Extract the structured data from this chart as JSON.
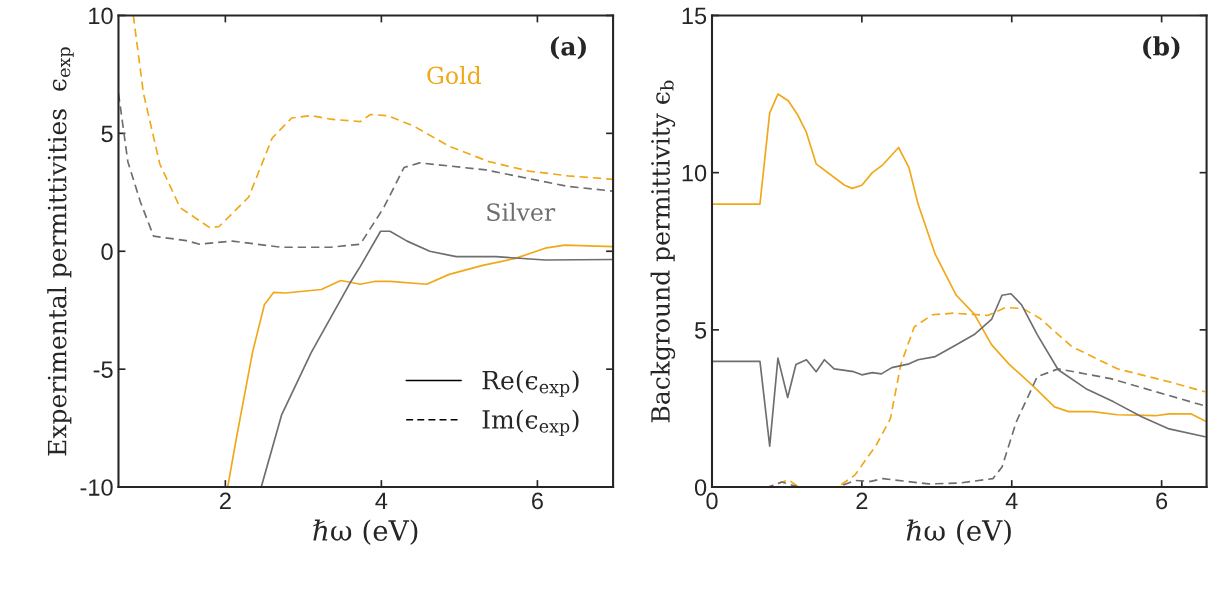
{
  "chart_data": [
    {
      "type": "line",
      "xlabel": "ℏω (eV)",
      "ylabel": "Experimental permittivities  ϵ$_{exp}$",
      "xlim": [
        0.63,
        6.97
      ],
      "ylim": [
        -10,
        10
      ],
      "xticks": [
        2,
        4,
        6
      ],
      "yticks": [
        -10,
        -5,
        0,
        5,
        10
      ],
      "grid": false,
      "annotations": [
        "(a)",
        "Re(ϵ$_{exp}$)",
        "Im(ϵ$_{exp}$)"
      ],
      "series": [
        {
          "color": "#f0a818",
          "line_style": "solid",
          "x": [
            2.03,
            2.14,
            2.35,
            2.5,
            2.62,
            2.77,
            3.23,
            3.48,
            3.73,
            3.91,
            4.11,
            4.58,
            4.87,
            5.3,
            5.72,
            6.1,
            6.35,
            6.97
          ],
          "values": [
            -10,
            -7.95,
            -4.26,
            -2.27,
            -1.74,
            -1.77,
            -1.62,
            -1.24,
            -1.4,
            -1.28,
            -1.28,
            -1.4,
            -0.98,
            -0.6,
            -0.3,
            0.13,
            0.26,
            0.2
          ]
        },
        {
          "name": "Gold",
          "color": "#f0a818",
          "line_style": "dashed",
          "x": [
            0.82,
            0.95,
            1.16,
            1.42,
            1.8,
            1.92,
            2.3,
            2.6,
            2.85,
            3.1,
            3.35,
            3.73,
            3.86,
            4.08,
            4.42,
            4.87,
            5.38,
            5.89,
            6.39,
            6.97
          ],
          "values": [
            10,
            6.7,
            3.7,
            1.85,
            1.0,
            1.05,
            2.3,
            4.8,
            5.65,
            5.75,
            5.6,
            5.5,
            5.8,
            5.75,
            5.3,
            4.45,
            3.8,
            3.4,
            3.2,
            3.05
          ]
        },
        {
          "name": "Silver",
          "color": "#6e6e6e",
          "line_style": "solid",
          "x": [
            2.46,
            2.72,
            3.1,
            3.61,
            3.73,
            3.99,
            4.11,
            4.33,
            4.62,
            4.96,
            5.47,
            6.1,
            6.97
          ],
          "values": [
            -10,
            -6.95,
            -4.3,
            -1.28,
            -0.64,
            0.85,
            0.85,
            0.43,
            0,
            -0.23,
            -0.23,
            -0.37,
            -0.35
          ]
        },
        {
          "color": "#6e6e6e",
          "line_style": "dashed",
          "x": [
            0.63,
            0.75,
            0.91,
            1.08,
            1.5,
            1.67,
            2.09,
            2.72,
            3.35,
            3.73,
            4.03,
            4.29,
            4.49,
            5.34,
            6.39,
            6.97
          ],
          "values": [
            6.7,
            3.8,
            2.1,
            0.64,
            0.45,
            0.3,
            0.43,
            0.17,
            0.17,
            0.3,
            1.85,
            3.55,
            3.75,
            3.45,
            2.75,
            2.55
          ]
        }
      ]
    },
    {
      "type": "line",
      "xlabel": "ℏω (eV)",
      "ylabel": "Background permittivity ϵ$_{b}$",
      "xlim": [
        0,
        6.6
      ],
      "ylim": [
        0,
        15
      ],
      "xticks": [
        0,
        2,
        4,
        6
      ],
      "yticks": [
        0,
        5,
        10,
        15
      ],
      "grid": false,
      "annotations": [
        "(b)"
      ],
      "series": [
        {
          "color": "#f0a818",
          "line_style": "solid",
          "x": [
            0,
            0.64,
            0.77,
            0.88,
            1.02,
            1.14,
            1.26,
            1.39,
            1.77,
            1.87,
            2.0,
            2.14,
            2.28,
            2.49,
            2.63,
            2.75,
            2.98,
            3.26,
            3.5,
            3.73,
            3.96,
            4.29,
            4.57,
            4.76,
            5.08,
            5.41,
            5.92,
            6.1,
            6.39,
            6.58
          ],
          "values": [
            9.0,
            9.0,
            11.9,
            12.5,
            12.28,
            11.85,
            11.28,
            10.28,
            9.6,
            9.5,
            9.6,
            10.0,
            10.25,
            10.8,
            10.15,
            9.0,
            7.4,
            6.1,
            5.5,
            4.53,
            3.92,
            3.2,
            2.55,
            2.4,
            2.4,
            2.3,
            2.27,
            2.33,
            2.33,
            2.1
          ]
        },
        {
          "color": "#f0a818",
          "line_style": "dashed",
          "x": [
            0,
            0.75,
            1.02,
            1.16,
            1.68,
            1.91,
            2.19,
            2.38,
            2.52,
            2.7,
            2.94,
            3.22,
            3.68,
            3.92,
            4.15,
            4.38,
            4.8,
            5.41,
            6.1,
            6.58
          ],
          "values": [
            0,
            0,
            0.23,
            0,
            0,
            0.39,
            1.33,
            2.17,
            3.9,
            5.1,
            5.48,
            5.53,
            5.46,
            5.71,
            5.68,
            5.36,
            4.47,
            3.76,
            3.35,
            3.03
          ]
        },
        {
          "color": "#6e6e6e",
          "line_style": "solid",
          "x": [
            0,
            0.64,
            0.77,
            0.88,
            1.01,
            1.12,
            1.26,
            1.39,
            1.5,
            1.63,
            1.89,
            2.0,
            2.14,
            2.26,
            2.4,
            2.63,
            2.75,
            2.98,
            3.22,
            3.5,
            3.73,
            3.87,
            3.99,
            4.13,
            4.34,
            4.62,
            4.99,
            5.36,
            5.74,
            6.1,
            6.58
          ],
          "values": [
            4.0,
            4.0,
            1.3,
            4.1,
            2.85,
            3.9,
            4.05,
            3.67,
            4.05,
            3.76,
            3.67,
            3.57,
            3.64,
            3.6,
            3.8,
            3.92,
            4.05,
            4.15,
            4.47,
            4.85,
            5.33,
            6.1,
            6.15,
            5.8,
            4.85,
            3.73,
            3.13,
            2.71,
            2.23,
            1.85,
            1.6
          ]
        },
        {
          "color": "#6e6e6e",
          "line_style": "dashed",
          "x": [
            0,
            0.75,
            0.93,
            1.16,
            1.68,
            1.91,
            2.12,
            2.28,
            2.89,
            3.31,
            3.75,
            3.87,
            4.06,
            4.34,
            4.62,
            5.32,
            6.58
          ],
          "values": [
            0,
            0,
            0.16,
            0,
            0,
            0.21,
            0.18,
            0.27,
            0.1,
            0.13,
            0.27,
            0.64,
            2.07,
            3.51,
            3.76,
            3.45,
            2.58
          ]
        }
      ]
    }
  ]
}
